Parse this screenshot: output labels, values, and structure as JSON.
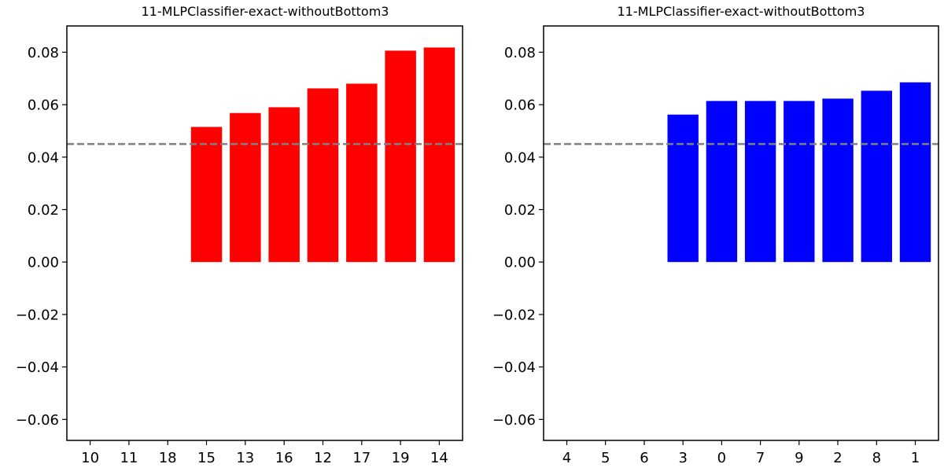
{
  "chart_data": [
    {
      "type": "bar",
      "title": "11-MLPClassifier-exact-withoutBottom3",
      "xlabel": "",
      "ylabel": "",
      "categories": [
        "10",
        "11",
        "18",
        "15",
        "13",
        "16",
        "12",
        "17",
        "19",
        "14"
      ],
      "values": [
        0,
        0,
        0,
        0.0515,
        0.0568,
        0.059,
        0.0662,
        0.068,
        0.0806,
        0.0818
      ],
      "bar_color": "#ff0000",
      "ylim": [
        -0.068,
        0.09
      ],
      "yticks": [
        -0.06,
        -0.04,
        -0.02,
        0.0,
        0.02,
        0.04,
        0.06,
        0.08
      ],
      "ytick_labels": [
        "−0.06",
        "−0.04",
        "−0.02",
        "0.00",
        "0.02",
        "0.04",
        "0.06",
        "0.08"
      ],
      "reference_line": {
        "y": 0.045,
        "color": "#808080",
        "style": "dashed"
      },
      "grid": false
    },
    {
      "type": "bar",
      "title": "11-MLPClassifier-exact-withoutBottom3",
      "xlabel": "",
      "ylabel": "",
      "categories": [
        "4",
        "5",
        "6",
        "3",
        "0",
        "7",
        "9",
        "2",
        "8",
        "1"
      ],
      "values": [
        0,
        0,
        0,
        0.0562,
        0.0614,
        0.0614,
        0.0614,
        0.0623,
        0.0653,
        0.0685
      ],
      "bar_color": "#0000ff",
      "ylim": [
        -0.068,
        0.09
      ],
      "yticks": [
        -0.06,
        -0.04,
        -0.02,
        0.0,
        0.02,
        0.04,
        0.06,
        0.08
      ],
      "ytick_labels": [
        "−0.06",
        "−0.04",
        "−0.02",
        "0.00",
        "0.02",
        "0.04",
        "0.06",
        "0.08"
      ],
      "reference_line": {
        "y": 0.045,
        "color": "#808080",
        "style": "dashed"
      },
      "grid": false
    }
  ]
}
